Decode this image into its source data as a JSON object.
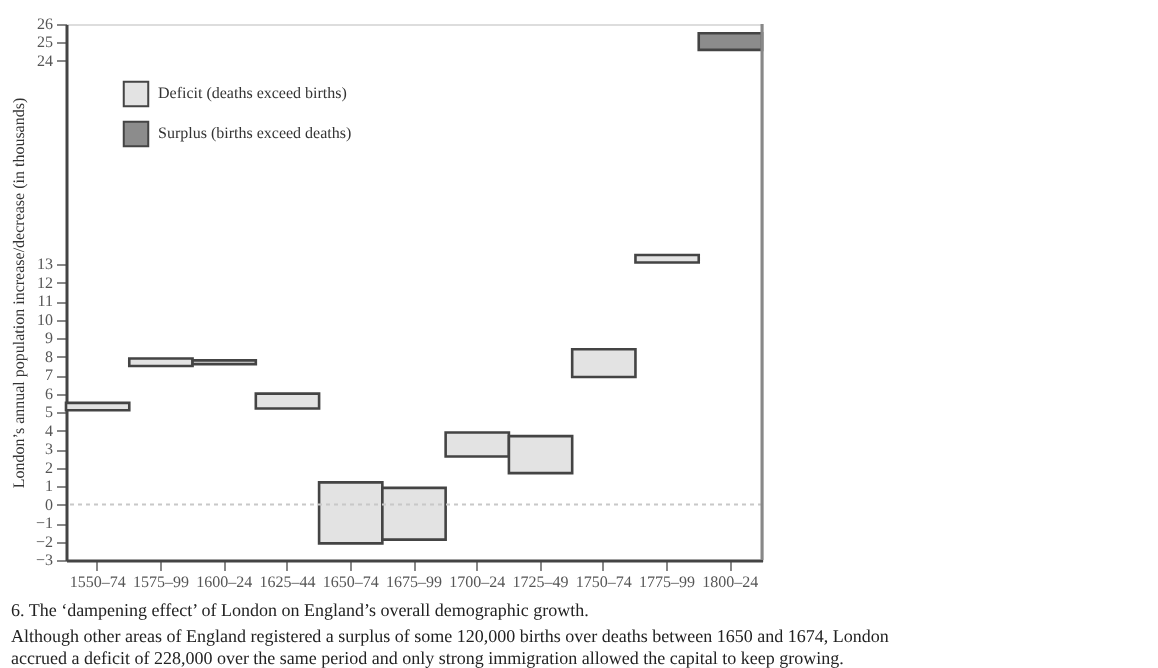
{
  "chart_data": {
    "type": "bar",
    "title": "6. The ‘dampening effect’ of London on England’s overall demographic growth.",
    "subtitle": "Although other areas of England registered a surplus of some 120,000 births over deaths between 1650 and 1674, London accrued a deficit of 228,000 over the same period and only strong immigration allowed the capital to keep growing.",
    "ylabel": "London’s annual population increase/decrease (in thousands)",
    "categories": [
      "1550–74",
      "1575–99",
      "1600–24",
      "1625–44",
      "1650–74",
      "1675–99",
      "1700–24",
      "1725–49",
      "1750–74",
      "1775–99",
      "1800–24"
    ],
    "series": [
      {
        "name": "Deficit (deaths exceed births)",
        "color": "#e3e3e3",
        "values": [
          0.4,
          0.4,
          0.2,
          0.8,
          3.3,
          2.8,
          1.3,
          2.0,
          1.5,
          0.4,
          null
        ],
        "base": [
          5.1,
          7.5,
          7.6,
          5.2,
          -2.1,
          -1.9,
          2.6,
          1.7,
          6.9,
          13.1,
          null
        ]
      },
      {
        "name": "Surplus (births exceed deaths)",
        "color": "#8c8c8c",
        "values": [
          null,
          null,
          null,
          null,
          null,
          null,
          null,
          null,
          null,
          null,
          0.9
        ],
        "base": [
          null,
          null,
          null,
          null,
          null,
          null,
          null,
          null,
          null,
          null,
          24.6
        ]
      }
    ],
    "ylim": [
      -3,
      26
    ],
    "yticks": [
      -3,
      -2,
      -1,
      0,
      1,
      2,
      3,
      4,
      5,
      6,
      7,
      8,
      9,
      10,
      11,
      12,
      13,
      24,
      25,
      26
    ],
    "ref_lines": [
      {
        "axis": "y",
        "value": 0,
        "color": "#c8c8c8",
        "line_style": "dotted"
      }
    ],
    "grid": false,
    "legend": "top left"
  }
}
